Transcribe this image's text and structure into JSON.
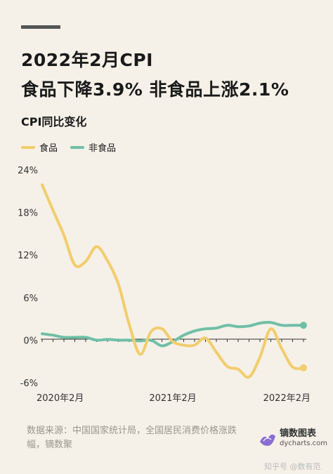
{
  "header": {
    "title_line1": "2022年2月CPI",
    "title_line2": "食品下降3.9%  非食品上涨2.1%",
    "subtitle": "CPI同比变化"
  },
  "colors": {
    "food": "#f2cd6d",
    "nonfood": "#6fbfa6",
    "axis": "#333333",
    "text": "#333333"
  },
  "chart_data": {
    "type": "line",
    "title": "CPI同比变化",
    "legend_position": "top-left",
    "grid": false,
    "y_ticks": [
      "24%",
      "18%",
      "12%",
      "6%",
      "0%",
      "-6%"
    ],
    "y_tick_values": [
      24,
      18,
      12,
      6,
      0,
      -6
    ],
    "ylim": [
      -6,
      24
    ],
    "x_tick_labels": [
      "2020年2月",
      "2021年2月",
      "2022年2月"
    ],
    "x_tick_index": [
      0,
      12,
      24
    ],
    "categories": [
      "2020-02",
      "2020-03",
      "2020-04",
      "2020-05",
      "2020-06",
      "2020-07",
      "2020-08",
      "2020-09",
      "2020-10",
      "2020-11",
      "2020-12",
      "2021-01",
      "2021-02",
      "2021-03",
      "2021-04",
      "2021-05",
      "2021-06",
      "2021-07",
      "2021-08",
      "2021-09",
      "2021-10",
      "2021-11",
      "2021-12",
      "2022-01",
      "2022-02"
    ],
    "series": [
      {
        "name": "食品",
        "color": "#f2cd6d",
        "values": [
          21.9,
          18.3,
          14.8,
          10.6,
          11.1,
          13.2,
          11.2,
          7.9,
          2.2,
          -2.0,
          1.2,
          1.6,
          -0.2,
          -0.7,
          -0.7,
          0.3,
          -1.7,
          -3.7,
          -4.1,
          -5.2,
          -2.4,
          1.6,
          -1.2,
          -3.8,
          -3.9
        ]
      },
      {
        "name": "非食品",
        "color": "#6fbfa6",
        "values": [
          0.9,
          0.7,
          0.4,
          0.4,
          0.4,
          0.0,
          0.1,
          0.0,
          0.0,
          -0.1,
          0.0,
          -0.8,
          -0.2,
          0.7,
          1.3,
          1.6,
          1.7,
          2.1,
          1.9,
          2.0,
          2.4,
          2.5,
          2.1,
          2.1,
          2.1
        ]
      }
    ]
  },
  "source": "数据来源：中国国家统计局，全国居民消费价格涨跌幅，镝数聚",
  "brand": {
    "name": "镝数图表",
    "url": "dycharts.com"
  },
  "footer": "知乎号 @数有范"
}
